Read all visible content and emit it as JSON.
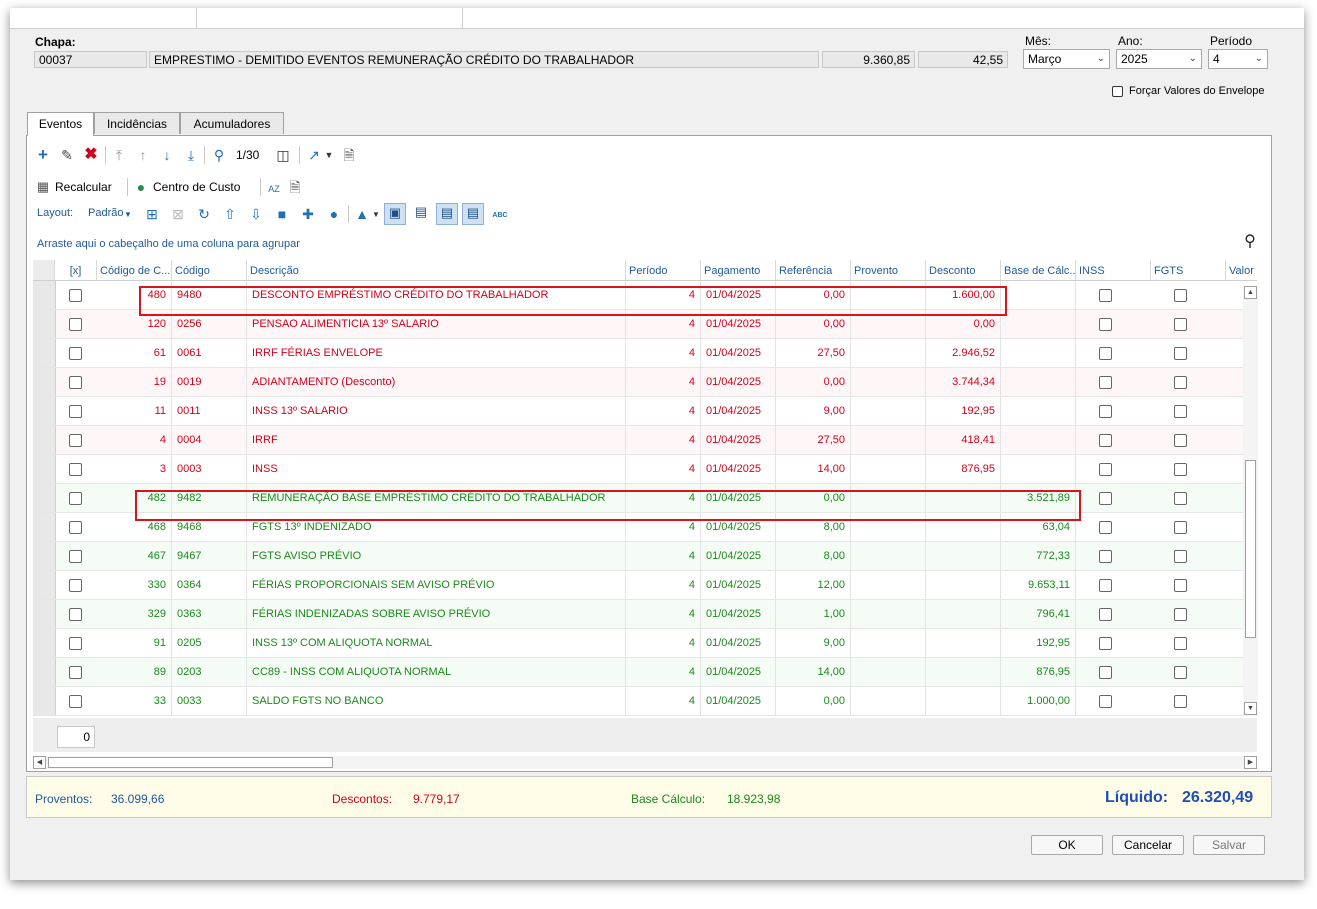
{
  "header": {
    "chapa_label": "Chapa:",
    "chapa": "00037",
    "descricao": "EMPRESTIMO - DEMITIDO EVENTOS REMUNERAÇÃO CRÉDITO DO TRABALHADOR",
    "valor1": "9.360,85",
    "valor2": "42,55",
    "mes_label": "Mês:",
    "mes": "Março",
    "ano_label": "Ano:",
    "ano": "2025",
    "periodo_label": "Período",
    "periodo": "4",
    "forcar_label": "Forçar Valores do Envelope"
  },
  "tabs": [
    {
      "label": "Eventos"
    },
    {
      "label": "Incidências"
    },
    {
      "label": "Acumuladores"
    }
  ],
  "toolbar": {
    "page_indicator": "1/30",
    "recalcular": "Recalcular",
    "centro_custo": "Centro de Custo",
    "layout_label": "Layout:",
    "layout_value": "Padrão",
    "abc_icon_text": "ABC",
    "sort_icon_text": "AZ",
    "group_hint": "Arraste aqui o cabeçalho de uma coluna para agrupar"
  },
  "columns": [
    "[x]",
    "Código de C...",
    "Código",
    "Descrição",
    "Período",
    "Pagamento",
    "Referência",
    "Provento",
    "Desconto",
    "Base de Cálc...",
    "INSS",
    "FGTS",
    "Valor Fo"
  ],
  "colors": {
    "desconto": "#d0021b",
    "base": "#1a8a1a",
    "link": "#1f5a99",
    "highlight": "#d9141c"
  },
  "rows": [
    {
      "codc": "480",
      "cod": "9480",
      "desc": "DESCONTO EMPRÉSTIMO CRÉDITO DO TRABALHADOR",
      "per": "4",
      "pag": "01/04/2025",
      "ref": "0,00",
      "prov": "",
      "descv": "1.600,00",
      "base": "",
      "kind": "d"
    },
    {
      "codc": "120",
      "cod": "0256",
      "desc": "PENSAO ALIMENTICIA 13º SALARIO",
      "per": "4",
      "pag": "01/04/2025",
      "ref": "0,00",
      "prov": "",
      "descv": "0,00",
      "base": "",
      "kind": "d"
    },
    {
      "codc": "61",
      "cod": "0061",
      "desc": "IRRF FÉRIAS ENVELOPE",
      "per": "4",
      "pag": "01/04/2025",
      "ref": "27,50",
      "prov": "",
      "descv": "2.946,52",
      "base": "",
      "kind": "d"
    },
    {
      "codc": "19",
      "cod": "0019",
      "desc": "ADIANTAMENTO (Desconto)",
      "per": "4",
      "pag": "01/04/2025",
      "ref": "0,00",
      "prov": "",
      "descv": "3.744,34",
      "base": "",
      "kind": "d"
    },
    {
      "codc": "11",
      "cod": "0011",
      "desc": "INSS 13º SALARIO",
      "per": "4",
      "pag": "01/04/2025",
      "ref": "9,00",
      "prov": "",
      "descv": "192,95",
      "base": "",
      "kind": "d"
    },
    {
      "codc": "4",
      "cod": "0004",
      "desc": "IRRF",
      "per": "4",
      "pag": "01/04/2025",
      "ref": "27,50",
      "prov": "",
      "descv": "418,41",
      "base": "",
      "kind": "d"
    },
    {
      "codc": "3",
      "cod": "0003",
      "desc": "INSS",
      "per": "4",
      "pag": "01/04/2025",
      "ref": "14,00",
      "prov": "",
      "descv": "876,95",
      "base": "",
      "kind": "d"
    },
    {
      "codc": "482",
      "cod": "9482",
      "desc": "REMUNERAÇÃO BASE EMPRÉSTIMO CRÉDITO DO TRABALHADOR",
      "per": "4",
      "pag": "01/04/2025",
      "ref": "0,00",
      "prov": "",
      "descv": "",
      "base": "3.521,89",
      "kind": "b"
    },
    {
      "codc": "468",
      "cod": "9468",
      "desc": "FGTS 13º INDENIZADO",
      "per": "4",
      "pag": "01/04/2025",
      "ref": "8,00",
      "prov": "",
      "descv": "",
      "base": "63,04",
      "kind": "b"
    },
    {
      "codc": "467",
      "cod": "9467",
      "desc": "FGTS AVISO PRÉVIO",
      "per": "4",
      "pag": "01/04/2025",
      "ref": "8,00",
      "prov": "",
      "descv": "",
      "base": "772,33",
      "kind": "b"
    },
    {
      "codc": "330",
      "cod": "0364",
      "desc": "FÉRIAS PROPORCIONAIS SEM AVISO PRÉVIO",
      "per": "4",
      "pag": "01/04/2025",
      "ref": "12,00",
      "prov": "",
      "descv": "",
      "base": "9.653,11",
      "kind": "b"
    },
    {
      "codc": "329",
      "cod": "0363",
      "desc": "FÉRIAS INDENIZADAS SOBRE AVISO PRÉVIO",
      "per": "4",
      "pag": "01/04/2025",
      "ref": "1,00",
      "prov": "",
      "descv": "",
      "base": "796,41",
      "kind": "b"
    },
    {
      "codc": "91",
      "cod": "0205",
      "desc": "INSS 13º COM ALIQUOTA NORMAL",
      "per": "4",
      "pag": "01/04/2025",
      "ref": "9,00",
      "prov": "",
      "descv": "",
      "base": "192,95",
      "kind": "b"
    },
    {
      "codc": "89",
      "cod": "0203",
      "desc": "CC89 - INSS COM ALIQUOTA NORMAL",
      "per": "4",
      "pag": "01/04/2025",
      "ref": "14,00",
      "prov": "",
      "descv": "",
      "base": "876,95",
      "kind": "b"
    },
    {
      "codc": "33",
      "cod": "0033",
      "desc": "SALDO FGTS NO BANCO",
      "per": "4",
      "pag": "01/04/2025",
      "ref": "0,00",
      "prov": "",
      "descv": "",
      "base": "1.000,00",
      "kind": "b"
    }
  ],
  "footer_count": "0",
  "totals": {
    "proventos_label": "Proventos:",
    "proventos": "36.099,66",
    "descontos_label": "Descontos:",
    "descontos": "9.779,17",
    "base_label": "Base Cálculo:",
    "base": "18.923,98",
    "liquido_label": "Líquido:",
    "liquido": "26.320,49"
  },
  "buttons": {
    "ok": "OK",
    "cancelar": "Cancelar",
    "salvar": "Salvar"
  }
}
